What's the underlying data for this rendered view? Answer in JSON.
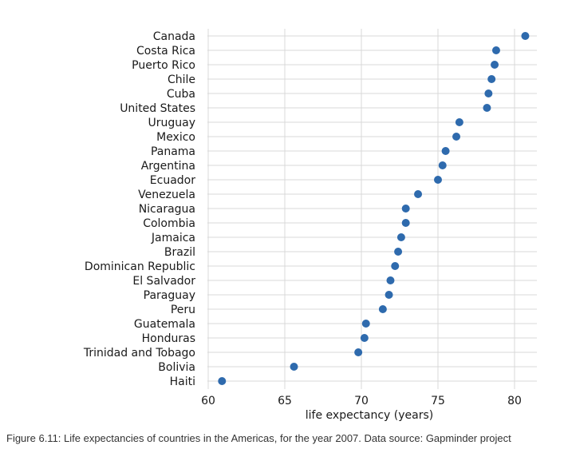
{
  "caption": "Figure 6.11: Life expectancies of countries in the Americas, for the year 2007. Data source: Gapminder project",
  "chart_data": {
    "type": "scatter",
    "title": "",
    "xlabel": "life expectancy (years)",
    "ylabel": "",
    "xlim": [
      59.5,
      81.5
    ],
    "xticks": [
      60,
      65,
      70,
      75,
      80
    ],
    "grid": true,
    "legend": "none",
    "point_color": "#2e6aad",
    "grid_color": "#d9d9d9",
    "categories": [
      "Canada",
      "Costa Rica",
      "Puerto Rico",
      "Chile",
      "Cuba",
      "United States",
      "Uruguay",
      "Mexico",
      "Panama",
      "Argentina",
      "Ecuador",
      "Venezuela",
      "Nicaragua",
      "Colombia",
      "Jamaica",
      "Brazil",
      "Dominican Republic",
      "El Salvador",
      "Paraguay",
      "Peru",
      "Guatemala",
      "Honduras",
      "Trinidad and Tobago",
      "Bolivia",
      "Haiti"
    ],
    "values": [
      80.7,
      78.8,
      78.7,
      78.5,
      78.3,
      78.2,
      76.4,
      76.2,
      75.5,
      75.3,
      75.0,
      73.7,
      72.9,
      72.9,
      72.6,
      72.4,
      72.2,
      71.9,
      71.8,
      71.4,
      70.3,
      70.2,
      69.8,
      65.6,
      60.9
    ]
  }
}
